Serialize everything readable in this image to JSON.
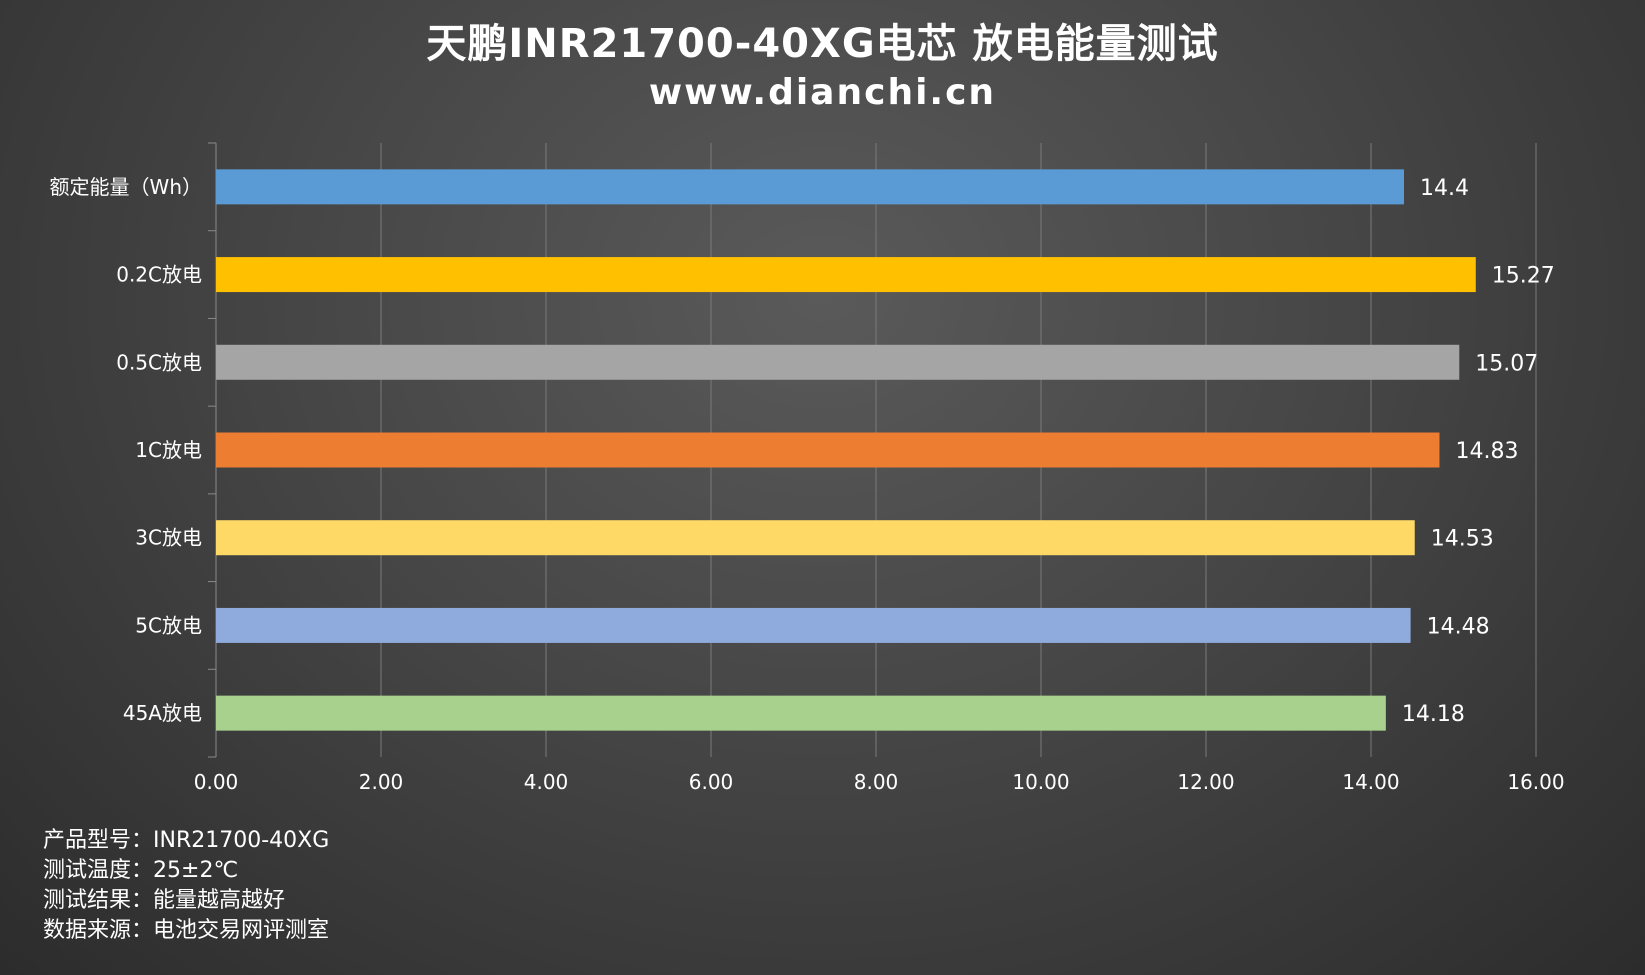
{
  "title": "天鹏INR21700-40XG电芯 放电能量测试",
  "subtitle": "www.dianchi.cn",
  "chart_data": {
    "type": "bar",
    "orientation": "horizontal",
    "categories": [
      "额定能量（Wh）",
      "0.2C放电",
      "0.5C放电",
      "1C放电",
      "3C放电",
      "5C放电",
      "45A放电"
    ],
    "values": [
      14.4,
      15.27,
      15.07,
      14.83,
      14.53,
      14.48,
      14.18
    ],
    "value_labels": [
      "14.4",
      "15.27",
      "15.07",
      "14.83",
      "14.53",
      "14.48",
      "14.18"
    ],
    "colors": [
      "#5B9BD5",
      "#FFC000",
      "#A5A5A5",
      "#ED7D31",
      "#FFD966",
      "#8FAADC",
      "#A9D18E"
    ],
    "xlim": [
      0,
      16
    ],
    "x_ticks": [
      "0.00",
      "2.00",
      "4.00",
      "6.00",
      "8.00",
      "10.00",
      "12.00",
      "14.00",
      "16.00"
    ],
    "grid": true,
    "legend": "none"
  },
  "notes": [
    {
      "label": "产品型号：",
      "value": "INR21700-40XG"
    },
    {
      "label": "测试温度：",
      "value": "25±2℃"
    },
    {
      "label": "测试结果：",
      "value": "能量越高越好"
    },
    {
      "label": "数据来源：",
      "value": "电池交易网评测室"
    }
  ]
}
